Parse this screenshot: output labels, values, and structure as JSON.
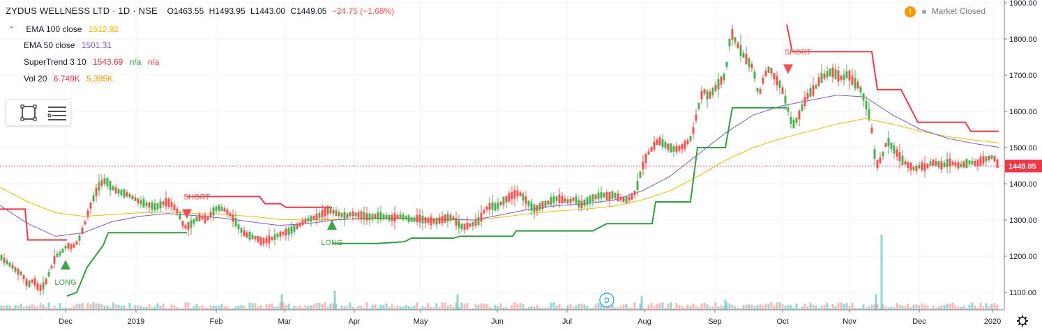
{
  "header": {
    "title": "ZYDUS WELLNESS LTD · 1D · NSE",
    "open": "O1463.55",
    "high": "H1493.95",
    "low": "L1443.00",
    "close": "C1449.05",
    "change": "−24.75 (−1.68%)"
  },
  "indicators": [
    {
      "label": "EMA 100 close",
      "values": [
        "1512.92"
      ],
      "colors": [
        "#f5b800"
      ]
    },
    {
      "label": "EMA 50 close",
      "values": [
        "1501.31"
      ],
      "colors": [
        "#7e57c2"
      ]
    },
    {
      "label": "SuperTrend 3 10",
      "values": [
        "1543.69",
        "n/a",
        "n/a"
      ],
      "colors": [
        "#f23645",
        "#2e9e3e",
        "#f23645"
      ]
    },
    {
      "label": "Vol 20",
      "values": [
        "6.749K",
        "5.395K"
      ],
      "colors": [
        "#f23645",
        "#ff9800"
      ]
    }
  ],
  "market_status": {
    "label": "Market Closed",
    "warning_icon": "!"
  },
  "colors": {
    "up": "#26a69a",
    "up_candle": "#4caf50",
    "down": "#ef5350",
    "ema100": "#f5b800",
    "ema50": "#7e57c2",
    "supertrend_up": "#2e9e3e",
    "supertrend_down": "#f23645",
    "vol_up": "#80cbc4",
    "vol_down": "#f4a6a6",
    "last_price": "#f23645"
  },
  "chart_data": {
    "type": "candlestick",
    "x_axis": {
      "ticks": [
        "Dec",
        "2019",
        "Feb",
        "Mar",
        "Apr",
        "May",
        "Jun",
        "Jul",
        "Aug",
        "Sep",
        "Oct",
        "Nov",
        "Dec",
        "2020"
      ]
    },
    "y_axis": {
      "ticks": [
        "1100.00",
        "1200.00",
        "1300.00",
        "1400.00",
        "1500.00",
        "1600.00",
        "1700.00",
        "1800.00",
        "1900.00"
      ],
      "range": [
        1040,
        1900
      ]
    },
    "last_price": 1449.05,
    "last_price_label": "1449.05",
    "signals": [
      {
        "label": "LONG",
        "type": "long",
        "month": "Dec 2018",
        "price": 1190
      },
      {
        "label": "SHORT",
        "type": "short",
        "month": "Jan 2019",
        "price": 1330
      },
      {
        "label": "LONG",
        "type": "long",
        "month": "Mar 2019",
        "price": 1300
      },
      {
        "label": "SHORT",
        "type": "short",
        "month": "Oct 2019",
        "price": 1730
      }
    ],
    "event_marker": {
      "label": "D",
      "month": "Jul 2019"
    },
    "price_path": [
      [
        0,
        1200
      ],
      [
        8,
        1185
      ],
      [
        16,
        1175
      ],
      [
        24,
        1160
      ],
      [
        32,
        1150
      ],
      [
        40,
        1120
      ],
      [
        48,
        1135
      ],
      [
        56,
        1110
      ],
      [
        64,
        1120
      ],
      [
        72,
        1160
      ],
      [
        80,
        1200
      ],
      [
        88,
        1210
      ],
      [
        96,
        1230
      ],
      [
        104,
        1225
      ],
      [
        112,
        1240
      ],
      [
        120,
        1280
      ],
      [
        128,
        1330
      ],
      [
        136,
        1370
      ],
      [
        144,
        1400
      ],
      [
        152,
        1410
      ],
      [
        160,
        1390
      ],
      [
        168,
        1380
      ],
      [
        176,
        1375
      ],
      [
        184,
        1370
      ],
      [
        192,
        1360
      ],
      [
        200,
        1350
      ],
      [
        208,
        1345
      ],
      [
        216,
        1340
      ],
      [
        224,
        1335
      ],
      [
        232,
        1345
      ],
      [
        240,
        1350
      ],
      [
        248,
        1340
      ],
      [
        256,
        1320
      ],
      [
        264,
        1280
      ],
      [
        272,
        1285
      ],
      [
        280,
        1300
      ],
      [
        288,
        1310
      ],
      [
        296,
        1300
      ],
      [
        304,
        1320
      ],
      [
        312,
        1335
      ],
      [
        320,
        1330
      ],
      [
        328,
        1320
      ],
      [
        336,
        1300
      ],
      [
        344,
        1275
      ],
      [
        352,
        1260
      ],
      [
        360,
        1255
      ],
      [
        368,
        1250
      ],
      [
        376,
        1240
      ],
      [
        384,
        1245
      ],
      [
        392,
        1250
      ],
      [
        400,
        1260
      ],
      [
        408,
        1265
      ],
      [
        416,
        1270
      ],
      [
        424,
        1280
      ],
      [
        432,
        1290
      ],
      [
        440,
        1300
      ],
      [
        448,
        1305
      ],
      [
        456,
        1310
      ],
      [
        464,
        1320
      ],
      [
        472,
        1330
      ],
      [
        480,
        1320
      ],
      [
        488,
        1315
      ],
      [
        496,
        1310
      ],
      [
        504,
        1318
      ],
      [
        512,
        1315
      ],
      [
        520,
        1312
      ],
      [
        528,
        1308
      ],
      [
        536,
        1310
      ],
      [
        544,
        1312
      ],
      [
        552,
        1310
      ],
      [
        560,
        1305
      ],
      [
        568,
        1308
      ],
      [
        576,
        1310
      ],
      [
        584,
        1305
      ],
      [
        592,
        1300
      ],
      [
        600,
        1305
      ],
      [
        608,
        1300
      ],
      [
        616,
        1298
      ],
      [
        624,
        1295
      ],
      [
        632,
        1300
      ],
      [
        640,
        1305
      ],
      [
        648,
        1310
      ],
      [
        656,
        1290
      ],
      [
        664,
        1280
      ],
      [
        672,
        1285
      ],
      [
        680,
        1290
      ],
      [
        688,
        1300
      ],
      [
        696,
        1330
      ],
      [
        704,
        1340
      ],
      [
        712,
        1335
      ],
      [
        720,
        1350
      ],
      [
        728,
        1360
      ],
      [
        736,
        1370
      ],
      [
        744,
        1375
      ],
      [
        752,
        1360
      ],
      [
        760,
        1340
      ],
      [
        768,
        1330
      ],
      [
        776,
        1340
      ],
      [
        784,
        1345
      ],
      [
        792,
        1355
      ],
      [
        800,
        1360
      ],
      [
        808,
        1355
      ],
      [
        816,
        1350
      ],
      [
        824,
        1360
      ],
      [
        832,
        1340
      ],
      [
        840,
        1350
      ],
      [
        848,
        1360
      ],
      [
        856,
        1365
      ],
      [
        864,
        1370
      ],
      [
        872,
        1365
      ],
      [
        880,
        1370
      ],
      [
        888,
        1360
      ],
      [
        896,
        1355
      ],
      [
        904,
        1360
      ],
      [
        912,
        1380
      ],
      [
        920,
        1440
      ],
      [
        928,
        1480
      ],
      [
        936,
        1500
      ],
      [
        944,
        1520
      ],
      [
        952,
        1510
      ],
      [
        960,
        1500
      ],
      [
        968,
        1495
      ],
      [
        976,
        1500
      ],
      [
        984,
        1510
      ],
      [
        992,
        1530
      ],
      [
        1000,
        1600
      ],
      [
        1008,
        1660
      ],
      [
        1016,
        1640
      ],
      [
        1024,
        1660
      ],
      [
        1032,
        1680
      ],
      [
        1040,
        1700
      ],
      [
        1048,
        1820
      ],
      [
        1056,
        1790
      ],
      [
        1064,
        1760
      ],
      [
        1072,
        1740
      ],
      [
        1080,
        1720
      ],
      [
        1088,
        1640
      ],
      [
        1096,
        1700
      ],
      [
        1104,
        1720
      ],
      [
        1112,
        1690
      ],
      [
        1120,
        1670
      ],
      [
        1128,
        1620
      ],
      [
        1136,
        1560
      ],
      [
        1144,
        1580
      ],
      [
        1152,
        1620
      ],
      [
        1160,
        1650
      ],
      [
        1168,
        1660
      ],
      [
        1176,
        1690
      ],
      [
        1184,
        1700
      ],
      [
        1192,
        1710
      ],
      [
        1200,
        1700
      ],
      [
        1208,
        1690
      ],
      [
        1216,
        1705
      ],
      [
        1224,
        1680
      ],
      [
        1232,
        1670
      ],
      [
        1240,
        1630
      ],
      [
        1248,
        1580
      ],
      [
        1256,
        1450
      ],
      [
        1264,
        1470
      ],
      [
        1272,
        1520
      ],
      [
        1280,
        1500
      ],
      [
        1288,
        1480
      ],
      [
        1296,
        1460
      ],
      [
        1304,
        1450
      ],
      [
        1312,
        1440
      ],
      [
        1320,
        1450
      ],
      [
        1328,
        1445
      ],
      [
        1336,
        1460
      ],
      [
        1344,
        1455
      ],
      [
        1352,
        1450
      ],
      [
        1360,
        1460
      ],
      [
        1368,
        1455
      ],
      [
        1376,
        1450
      ],
      [
        1384,
        1455
      ],
      [
        1392,
        1460
      ],
      [
        1400,
        1455
      ],
      [
        1408,
        1465
      ],
      [
        1416,
        1470
      ],
      [
        1424,
        1475
      ],
      [
        1432,
        1449
      ]
    ],
    "ema50_path": [
      [
        0,
        1340
      ],
      [
        40,
        1290
      ],
      [
        80,
        1255
      ],
      [
        120,
        1265
      ],
      [
        160,
        1295
      ],
      [
        200,
        1310
      ],
      [
        240,
        1318
      ],
      [
        280,
        1312
      ],
      [
        320,
        1305
      ],
      [
        360,
        1295
      ],
      [
        400,
        1285
      ],
      [
        440,
        1290
      ],
      [
        480,
        1300
      ],
      [
        520,
        1305
      ],
      [
        560,
        1305
      ],
      [
        600,
        1303
      ],
      [
        640,
        1302
      ],
      [
        680,
        1300
      ],
      [
        720,
        1315
      ],
      [
        760,
        1330
      ],
      [
        800,
        1340
      ],
      [
        840,
        1345
      ],
      [
        880,
        1355
      ],
      [
        920,
        1380
      ],
      [
        960,
        1420
      ],
      [
        1000,
        1480
      ],
      [
        1040,
        1540
      ],
      [
        1080,
        1590
      ],
      [
        1120,
        1615
      ],
      [
        1160,
        1630
      ],
      [
        1200,
        1645
      ],
      [
        1240,
        1640
      ],
      [
        1280,
        1590
      ],
      [
        1320,
        1550
      ],
      [
        1360,
        1525
      ],
      [
        1400,
        1510
      ],
      [
        1432,
        1501
      ]
    ],
    "ema100_path": [
      [
        0,
        1390
      ],
      [
        40,
        1350
      ],
      [
        80,
        1320
      ],
      [
        120,
        1310
      ],
      [
        160,
        1315
      ],
      [
        200,
        1320
      ],
      [
        240,
        1322
      ],
      [
        280,
        1318
      ],
      [
        320,
        1315
      ],
      [
        360,
        1310
      ],
      [
        400,
        1302
      ],
      [
        440,
        1300
      ],
      [
        480,
        1302
      ],
      [
        520,
        1303
      ],
      [
        560,
        1303
      ],
      [
        600,
        1302
      ],
      [
        640,
        1300
      ],
      [
        680,
        1300
      ],
      [
        720,
        1308
      ],
      [
        760,
        1318
      ],
      [
        800,
        1325
      ],
      [
        840,
        1330
      ],
      [
        880,
        1338
      ],
      [
        920,
        1355
      ],
      [
        960,
        1380
      ],
      [
        1000,
        1420
      ],
      [
        1040,
        1465
      ],
      [
        1080,
        1500
      ],
      [
        1120,
        1525
      ],
      [
        1160,
        1545
      ],
      [
        1200,
        1565
      ],
      [
        1240,
        1580
      ],
      [
        1280,
        1565
      ],
      [
        1320,
        1545
      ],
      [
        1360,
        1530
      ],
      [
        1400,
        1520
      ],
      [
        1432,
        1513
      ]
    ],
    "supertrend_segments": [
      {
        "color": "down",
        "points": [
          [
            0,
            1330
          ],
          [
            36,
            1330
          ],
          [
            40,
            1245
          ],
          [
            96,
            1245
          ]
        ]
      },
      {
        "color": "up",
        "points": [
          [
            96,
            1090
          ],
          [
            110,
            1100
          ],
          [
            125,
            1170
          ],
          [
            148,
            1230
          ],
          [
            155,
            1265
          ],
          [
            268,
            1265
          ]
        ]
      },
      {
        "color": "down",
        "points": [
          [
            268,
            1365
          ],
          [
            372,
            1365
          ],
          [
            380,
            1345
          ],
          [
            402,
            1345
          ],
          [
            410,
            1335
          ],
          [
            476,
            1335
          ]
        ]
      },
      {
        "color": "up",
        "points": [
          [
            476,
            1235
          ],
          [
            540,
            1235
          ],
          [
            580,
            1240
          ],
          [
            590,
            1250
          ],
          [
            650,
            1250
          ],
          [
            660,
            1255
          ],
          [
            735,
            1255
          ],
          [
            740,
            1270
          ],
          [
            850,
            1270
          ],
          [
            870,
            1290
          ],
          [
            935,
            1290
          ],
          [
            940,
            1350
          ],
          [
            990,
            1350
          ],
          [
            1000,
            1500
          ],
          [
            1040,
            1500
          ],
          [
            1050,
            1610
          ],
          [
            1128,
            1610
          ]
        ]
      },
      {
        "color": "down",
        "points": [
          [
            1128,
            1840
          ],
          [
            1136,
            1765
          ],
          [
            1250,
            1765
          ],
          [
            1258,
            1660
          ],
          [
            1292,
            1660
          ],
          [
            1316,
            1570
          ],
          [
            1384,
            1570
          ],
          [
            1392,
            1545
          ],
          [
            1432,
            1545
          ]
        ]
      }
    ],
    "volume_spikes": [
      [
        1264,
        1260
      ],
      [
        1256,
        1095
      ],
      [
        404,
        1095
      ],
      [
        480,
        1105
      ],
      [
        656,
        1095
      ],
      [
        920,
        1090
      ],
      [
        1040,
        1080
      ]
    ]
  }
}
